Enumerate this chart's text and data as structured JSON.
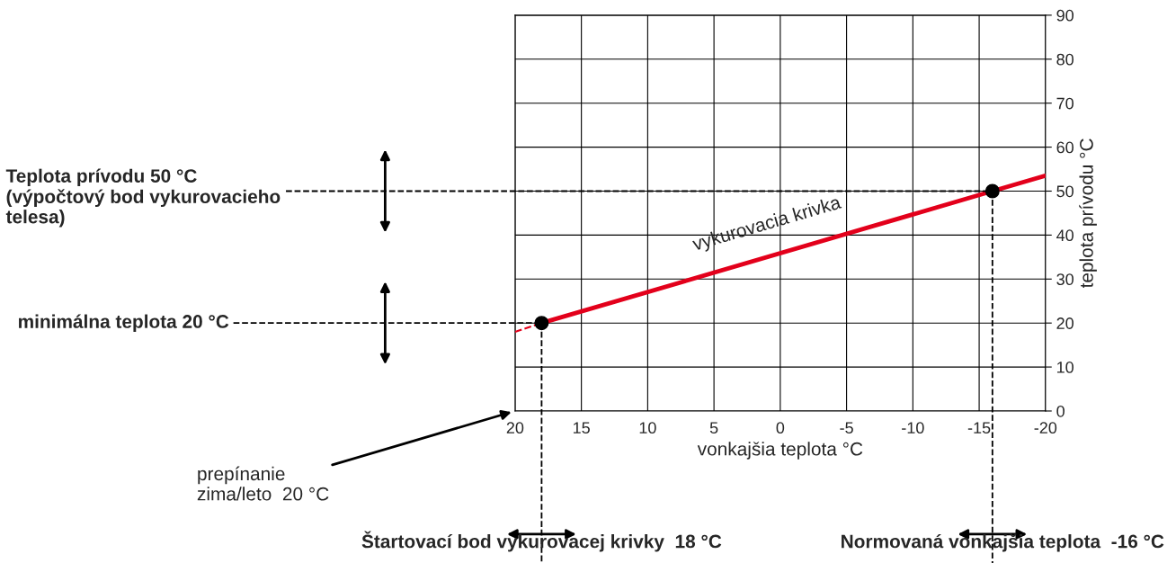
{
  "chart_data": {
    "type": "line",
    "xlabel": "vonkajšia teplota °C",
    "ylabel": "teplota prívodu °C",
    "xlim": [
      20,
      -20
    ],
    "xticks": [
      20,
      15,
      10,
      5,
      0,
      -5,
      -10,
      -15,
      -20
    ],
    "ylim": [
      0,
      90
    ],
    "yticks": [
      0,
      10,
      20,
      30,
      40,
      50,
      60,
      70,
      80,
      90
    ],
    "grid": true,
    "series": [
      {
        "color": "#e3001b",
        "line_style": "solid",
        "x": [
          18,
          -16,
          -20
        ],
        "values": [
          20,
          50,
          53.5
        ]
      },
      {
        "color": "#e3001b",
        "line_style": "dashed",
        "x": [
          20,
          18
        ],
        "values": [
          18,
          20
        ]
      },
      {
        "type": "scatter",
        "color": "#000000",
        "marker": "circle",
        "x": [
          18,
          -16
        ],
        "values": [
          20,
          50
        ]
      }
    ],
    "ref_lines": [
      {
        "axis": "y",
        "value": 50,
        "label": "Teplota prívodu 50 °C\n(výpočtový bod vykurovacieho\ntelesa)",
        "color": "#000000",
        "line_style": "dashed"
      },
      {
        "axis": "y",
        "value": 20,
        "label": "minimálna teplota 20 °C",
        "color": "#000000",
        "line_style": "dashed"
      },
      {
        "axis": "x",
        "value": 18,
        "label": "Štartovací bod vykurovacej krivky  18 °C",
        "color": "#000000",
        "line_style": "dashed"
      },
      {
        "axis": "x",
        "value": -16,
        "label": "Normovaná vonkajšia teplota  -16 °C",
        "color": "#000000",
        "line_style": "dashed"
      }
    ],
    "annotations": [
      "vykurovacia krivka",
      "prepínanie\nzima/leto  20 °C"
    ]
  }
}
